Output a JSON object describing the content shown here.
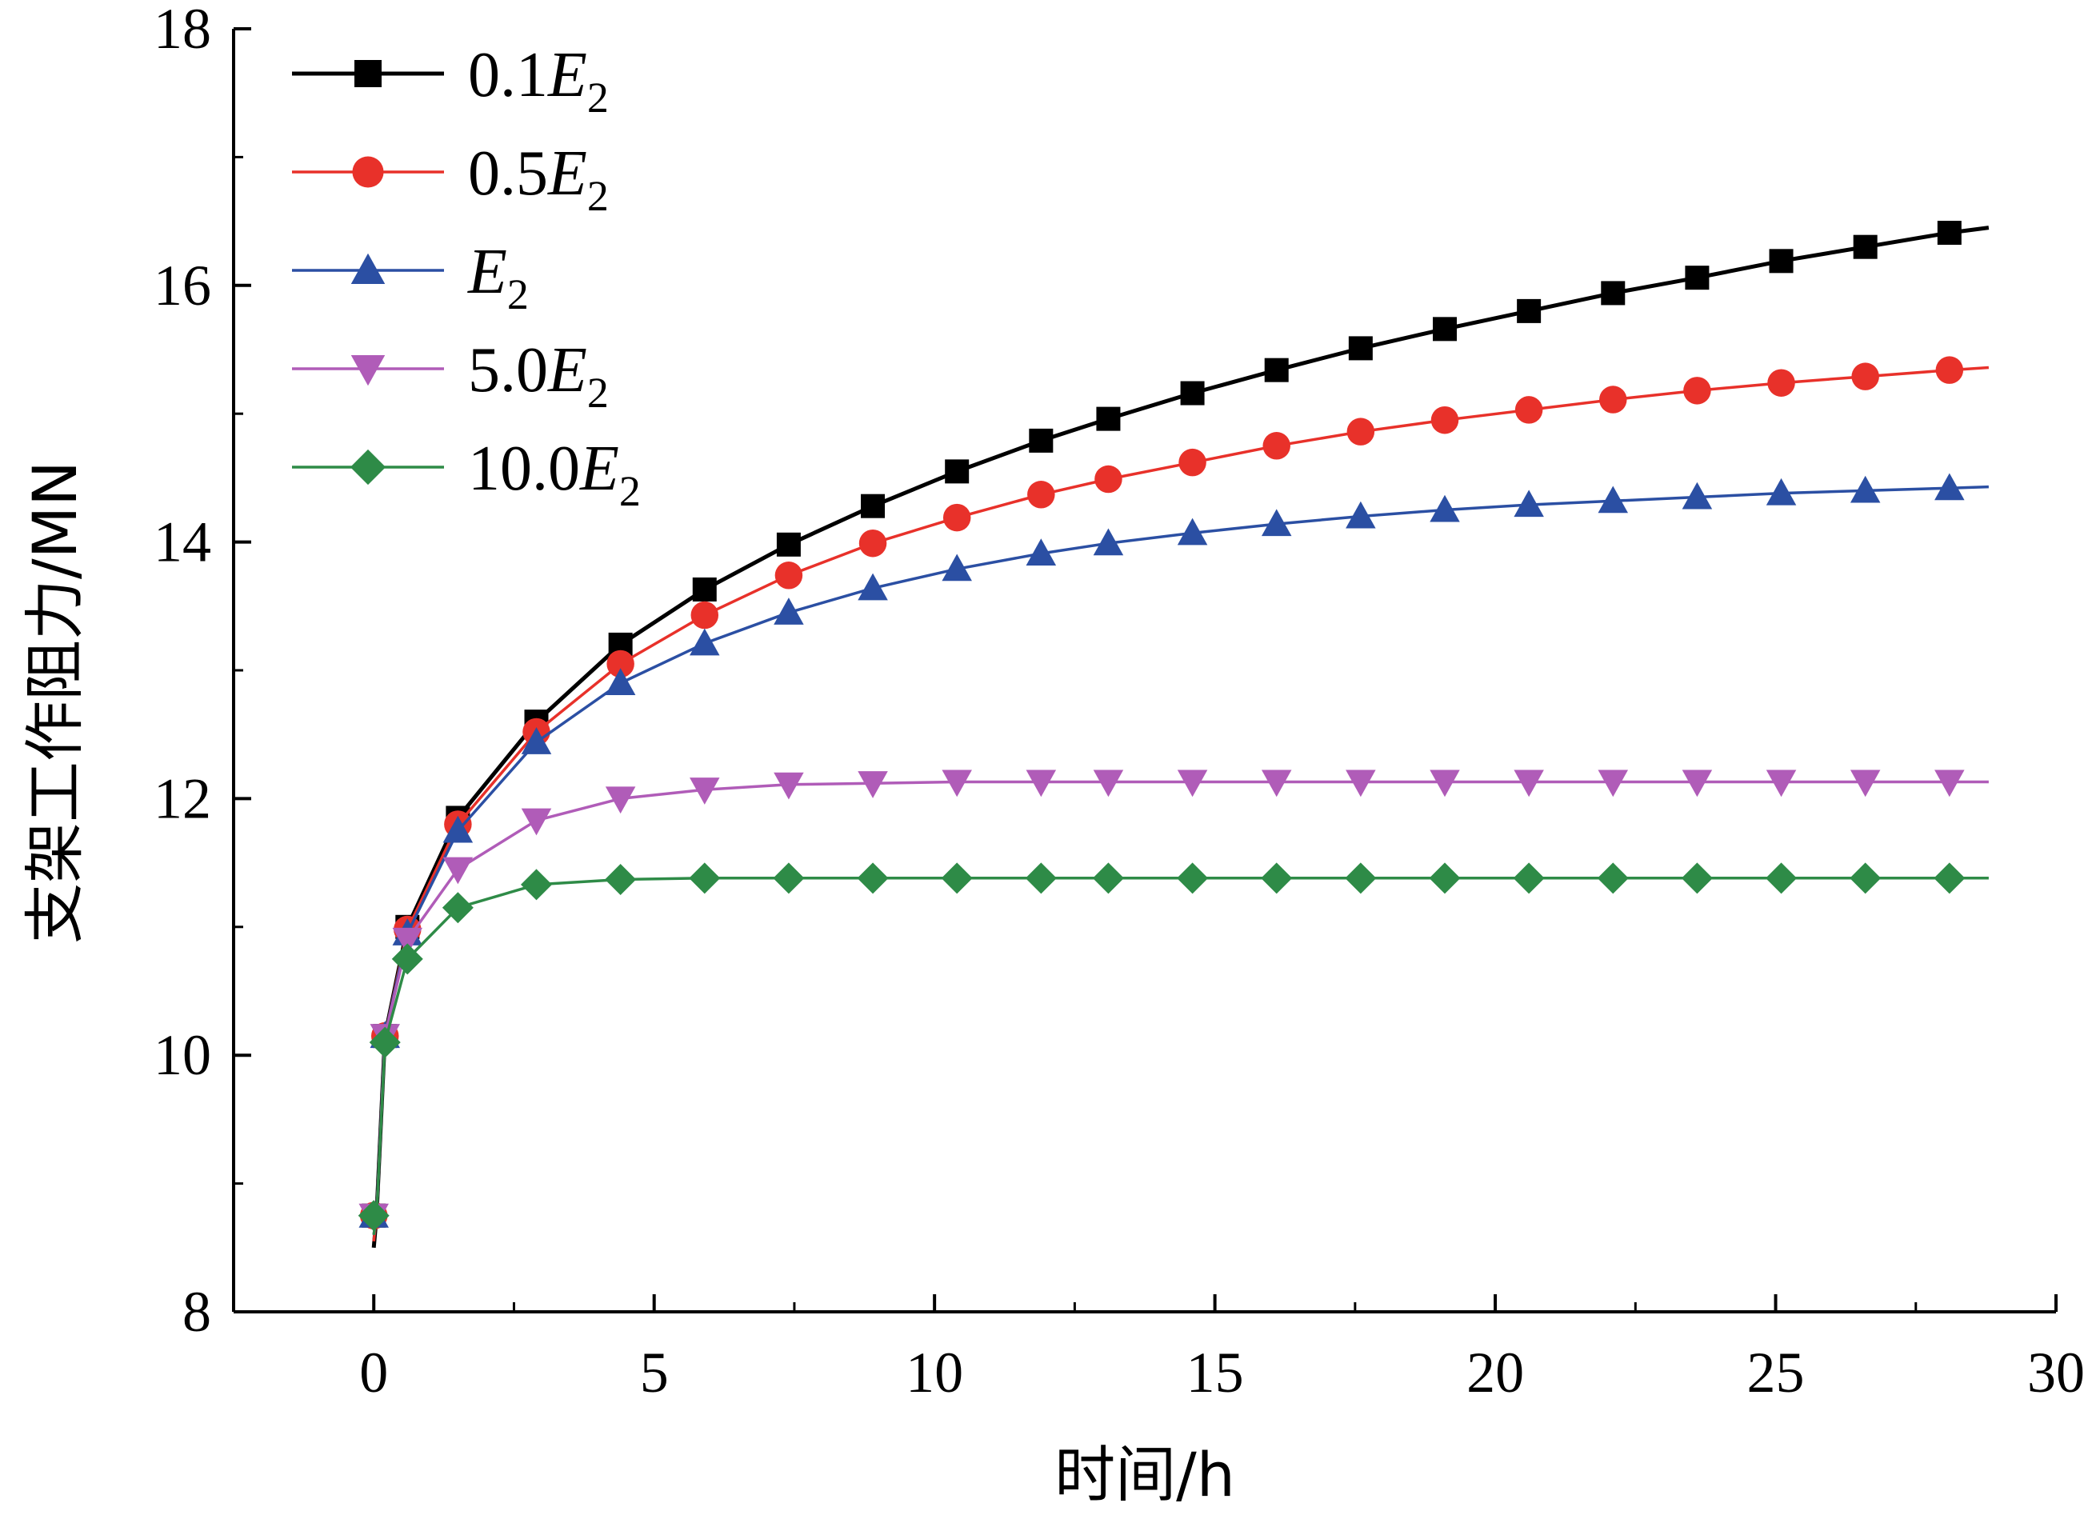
{
  "chart_data": {
    "type": "line",
    "xlabel": "时间/h",
    "ylabel": "支架工作阻力/MN",
    "xlim": [
      -2.5,
      30
    ],
    "ylim": [
      8,
      18
    ],
    "xticks": [
      0,
      5,
      10,
      15,
      20,
      25,
      30
    ],
    "yticks": [
      8,
      10,
      12,
      14,
      16,
      18
    ],
    "legend_position": "top-left",
    "grid": false,
    "series": [
      {
        "name": "0.1E2",
        "legend_prefix": "0.1",
        "color": "#000000",
        "marker": "square",
        "curve": [
          [
            0,
            8.5
          ],
          [
            0.05,
            8.75
          ],
          [
            0.2,
            10.15
          ],
          [
            0.6,
            11.0
          ],
          [
            1.5,
            11.85
          ],
          [
            2.9,
            12.6
          ],
          [
            4.4,
            13.2
          ],
          [
            5.9,
            13.63
          ],
          [
            7.4,
            13.98
          ],
          [
            8.9,
            14.28
          ],
          [
            10.4,
            14.55
          ],
          [
            11.9,
            14.79
          ],
          [
            13.1,
            14.96
          ],
          [
            14.6,
            15.16
          ],
          [
            16.1,
            15.34
          ],
          [
            17.6,
            15.51
          ],
          [
            19.1,
            15.66
          ],
          [
            20.6,
            15.8
          ],
          [
            22.1,
            15.94
          ],
          [
            23.6,
            16.06
          ],
          [
            25.1,
            16.19
          ],
          [
            26.6,
            16.3
          ],
          [
            28.1,
            16.41
          ],
          [
            28.8,
            16.45
          ]
        ],
        "points": [
          [
            0,
            8.75
          ],
          [
            0.2,
            10.15
          ],
          [
            0.6,
            11.0
          ],
          [
            1.5,
            11.85
          ],
          [
            2.9,
            12.6
          ],
          [
            4.4,
            13.2
          ],
          [
            5.9,
            13.63
          ],
          [
            7.4,
            13.98
          ],
          [
            8.9,
            14.28
          ],
          [
            10.4,
            14.55
          ],
          [
            11.9,
            14.79
          ],
          [
            13.1,
            14.96
          ],
          [
            14.6,
            15.16
          ],
          [
            16.1,
            15.34
          ],
          [
            17.6,
            15.51
          ],
          [
            19.1,
            15.66
          ],
          [
            20.6,
            15.8
          ],
          [
            22.1,
            15.94
          ],
          [
            23.6,
            16.06
          ],
          [
            25.1,
            16.19
          ],
          [
            26.6,
            16.3
          ],
          [
            28.1,
            16.41
          ]
        ]
      },
      {
        "name": "0.5E2",
        "legend_prefix": "0.5",
        "color": "#e8312a",
        "marker": "circle",
        "curve": [
          [
            0,
            8.55
          ],
          [
            0.05,
            8.75
          ],
          [
            0.2,
            10.15
          ],
          [
            0.6,
            10.98
          ],
          [
            1.5,
            11.8
          ],
          [
            2.9,
            12.52
          ],
          [
            4.4,
            13.05
          ],
          [
            5.9,
            13.43
          ],
          [
            7.4,
            13.74
          ],
          [
            8.9,
            13.99
          ],
          [
            10.4,
            14.19
          ],
          [
            11.9,
            14.37
          ],
          [
            13.1,
            14.49
          ],
          [
            14.6,
            14.62
          ],
          [
            16.1,
            14.75
          ],
          [
            17.6,
            14.86
          ],
          [
            19.1,
            14.95
          ],
          [
            20.6,
            15.03
          ],
          [
            22.1,
            15.11
          ],
          [
            23.6,
            15.18
          ],
          [
            25.1,
            15.24
          ],
          [
            26.6,
            15.29
          ],
          [
            28.1,
            15.34
          ],
          [
            28.8,
            15.36
          ]
        ],
        "points": [
          [
            0,
            8.75
          ],
          [
            0.2,
            10.15
          ],
          [
            0.6,
            10.98
          ],
          [
            1.5,
            11.8
          ],
          [
            2.9,
            12.52
          ],
          [
            4.4,
            13.05
          ],
          [
            5.9,
            13.43
          ],
          [
            7.4,
            13.74
          ],
          [
            8.9,
            13.99
          ],
          [
            10.4,
            14.19
          ],
          [
            11.9,
            14.37
          ],
          [
            13.1,
            14.49
          ],
          [
            14.6,
            14.62
          ],
          [
            16.1,
            14.75
          ],
          [
            17.6,
            14.86
          ],
          [
            19.1,
            14.95
          ],
          [
            20.6,
            15.03
          ],
          [
            22.1,
            15.11
          ],
          [
            23.6,
            15.18
          ],
          [
            25.1,
            15.24
          ],
          [
            26.6,
            15.29
          ],
          [
            28.1,
            15.34
          ]
        ]
      },
      {
        "name": "E2",
        "legend_prefix": "",
        "color": "#2b4fa3",
        "marker": "triangle-up",
        "curve": [
          [
            0,
            8.6
          ],
          [
            0.05,
            8.75
          ],
          [
            0.2,
            10.15
          ],
          [
            0.6,
            10.95
          ],
          [
            1.5,
            11.75
          ],
          [
            2.9,
            12.44
          ],
          [
            4.4,
            12.9
          ],
          [
            5.9,
            13.21
          ],
          [
            7.4,
            13.45
          ],
          [
            8.9,
            13.64
          ],
          [
            10.4,
            13.79
          ],
          [
            11.9,
            13.91
          ],
          [
            13.1,
            13.99
          ],
          [
            14.6,
            14.07
          ],
          [
            16.1,
            14.14
          ],
          [
            17.6,
            14.2
          ],
          [
            19.1,
            14.25
          ],
          [
            20.6,
            14.29
          ],
          [
            22.1,
            14.32
          ],
          [
            23.6,
            14.35
          ],
          [
            25.1,
            14.38
          ],
          [
            26.6,
            14.4
          ],
          [
            28.1,
            14.42
          ],
          [
            28.8,
            14.43
          ]
        ],
        "points": [
          [
            0,
            8.75
          ],
          [
            0.2,
            10.15
          ],
          [
            0.6,
            10.95
          ],
          [
            1.5,
            11.75
          ],
          [
            2.9,
            12.44
          ],
          [
            4.4,
            12.9
          ],
          [
            5.9,
            13.21
          ],
          [
            7.4,
            13.45
          ],
          [
            8.9,
            13.64
          ],
          [
            10.4,
            13.79
          ],
          [
            11.9,
            13.91
          ],
          [
            13.1,
            13.99
          ],
          [
            14.6,
            14.07
          ],
          [
            16.1,
            14.14
          ],
          [
            17.6,
            14.2
          ],
          [
            19.1,
            14.25
          ],
          [
            20.6,
            14.29
          ],
          [
            22.1,
            14.32
          ],
          [
            23.6,
            14.35
          ],
          [
            25.1,
            14.38
          ],
          [
            26.6,
            14.4
          ],
          [
            28.1,
            14.42
          ]
        ]
      },
      {
        "name": "5.0E2",
        "legend_prefix": "5.0",
        "color": "#b05cb8",
        "marker": "triangle-down",
        "curve": [
          [
            0,
            8.6
          ],
          [
            0.05,
            8.75
          ],
          [
            0.2,
            10.15
          ],
          [
            0.6,
            10.9
          ],
          [
            1.5,
            11.45
          ],
          [
            2.9,
            11.83
          ],
          [
            4.4,
            12.0
          ],
          [
            5.9,
            12.07
          ],
          [
            7.4,
            12.11
          ],
          [
            8.9,
            12.12
          ],
          [
            10.4,
            12.13
          ],
          [
            11.9,
            12.13
          ],
          [
            13.1,
            12.13
          ],
          [
            14.6,
            12.13
          ],
          [
            16.1,
            12.13
          ],
          [
            17.6,
            12.13
          ],
          [
            19.1,
            12.13
          ],
          [
            20.6,
            12.13
          ],
          [
            22.1,
            12.13
          ],
          [
            23.6,
            12.13
          ],
          [
            25.1,
            12.13
          ],
          [
            26.6,
            12.13
          ],
          [
            28.1,
            12.13
          ],
          [
            28.8,
            12.13
          ]
        ],
        "points": [
          [
            0,
            8.75
          ],
          [
            0.2,
            10.15
          ],
          [
            0.6,
            10.9
          ],
          [
            1.5,
            11.45
          ],
          [
            2.9,
            11.83
          ],
          [
            4.4,
            12.0
          ],
          [
            5.9,
            12.07
          ],
          [
            7.4,
            12.11
          ],
          [
            8.9,
            12.12
          ],
          [
            10.4,
            12.13
          ],
          [
            11.9,
            12.13
          ],
          [
            13.1,
            12.13
          ],
          [
            14.6,
            12.13
          ],
          [
            16.1,
            12.13
          ],
          [
            17.6,
            12.13
          ],
          [
            19.1,
            12.13
          ],
          [
            20.6,
            12.13
          ],
          [
            22.1,
            12.13
          ],
          [
            23.6,
            12.13
          ],
          [
            25.1,
            12.13
          ],
          [
            26.6,
            12.13
          ],
          [
            28.1,
            12.13
          ]
        ]
      },
      {
        "name": "10.0E2",
        "legend_prefix": "10.0",
        "color": "#2e8b47",
        "marker": "diamond",
        "curve": [
          [
            0,
            8.6
          ],
          [
            0.05,
            8.75
          ],
          [
            0.2,
            10.1
          ],
          [
            0.6,
            10.75
          ],
          [
            1.5,
            11.15
          ],
          [
            2.9,
            11.33
          ],
          [
            4.4,
            11.37
          ],
          [
            5.9,
            11.38
          ],
          [
            7.4,
            11.38
          ],
          [
            8.9,
            11.38
          ],
          [
            10.4,
            11.38
          ],
          [
            11.9,
            11.38
          ],
          [
            13.1,
            11.38
          ],
          [
            14.6,
            11.38
          ],
          [
            16.1,
            11.38
          ],
          [
            17.6,
            11.38
          ],
          [
            19.1,
            11.38
          ],
          [
            20.6,
            11.38
          ],
          [
            22.1,
            11.38
          ],
          [
            23.6,
            11.38
          ],
          [
            25.1,
            11.38
          ],
          [
            26.6,
            11.38
          ],
          [
            28.1,
            11.38
          ],
          [
            28.8,
            11.38
          ]
        ],
        "points": [
          [
            0,
            8.75
          ],
          [
            0.2,
            10.1
          ],
          [
            0.6,
            10.75
          ],
          [
            1.5,
            11.15
          ],
          [
            2.9,
            11.33
          ],
          [
            4.4,
            11.37
          ],
          [
            5.9,
            11.38
          ],
          [
            7.4,
            11.38
          ],
          [
            8.9,
            11.38
          ],
          [
            10.4,
            11.38
          ],
          [
            11.9,
            11.38
          ],
          [
            13.1,
            11.38
          ],
          [
            14.6,
            11.38
          ],
          [
            16.1,
            11.38
          ],
          [
            17.6,
            11.38
          ],
          [
            19.1,
            11.38
          ],
          [
            20.6,
            11.38
          ],
          [
            22.1,
            11.38
          ],
          [
            23.6,
            11.38
          ],
          [
            25.1,
            11.38
          ],
          [
            26.6,
            11.38
          ],
          [
            28.1,
            11.38
          ]
        ]
      }
    ]
  }
}
